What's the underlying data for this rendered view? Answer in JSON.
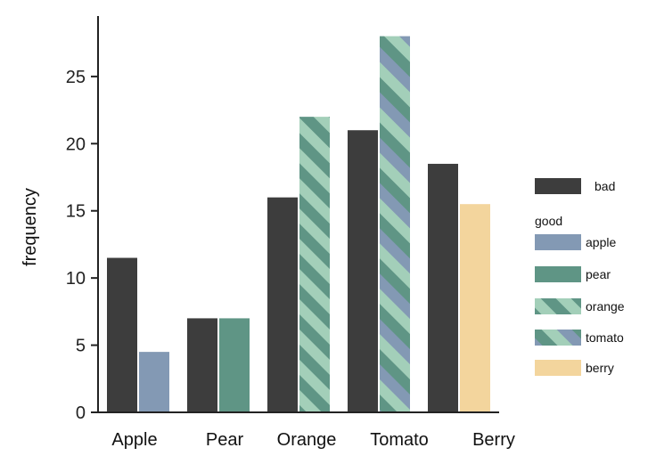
{
  "chart_data": {
    "type": "bar",
    "categories": [
      "Apple",
      "Pear",
      "Orange",
      "Tomato",
      "Berry"
    ],
    "ylabel": "frequency",
    "ylim": [
      0,
      29.5
    ],
    "yticks": [
      0,
      5,
      10,
      15,
      20,
      25
    ],
    "grid": false,
    "legend_position": "right",
    "series": [
      {
        "name": "bad",
        "values": [
          11.5,
          7,
          16,
          21,
          18.5
        ]
      },
      {
        "name": "good",
        "values": [
          4.5,
          7,
          22,
          28,
          15.5
        ]
      }
    ],
    "legend": {
      "bad_label": "bad",
      "good_title": "good",
      "good_items": [
        "apple",
        "pear",
        "orange",
        "tomato",
        "berry"
      ]
    },
    "colors": {
      "bad": "#3d3d3d",
      "apple": "#8399b4",
      "pear": "#5f9585",
      "orange_light": "#a3cfb9",
      "orange_dark": "#5f9585",
      "berry": "#f3d59d"
    }
  }
}
